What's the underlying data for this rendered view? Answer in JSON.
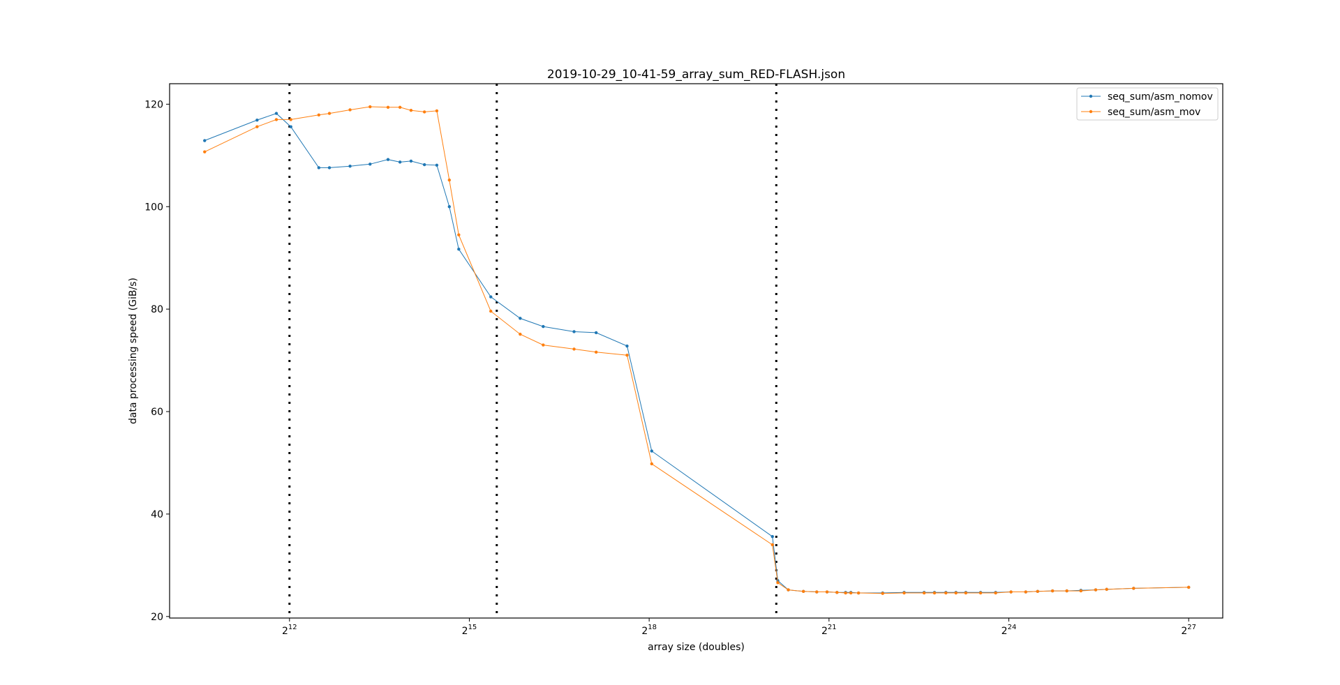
{
  "chart_data": {
    "type": "line",
    "title": "2019-10-29_10-41-59_array_sum_RED-FLASH.json",
    "xlabel": "array size (doubles)",
    "ylabel": "data processing speed (GiB/s)",
    "x_scale": "log2",
    "xlim": [
      1024,
      199000000
    ],
    "ylim": [
      19.7,
      124
    ],
    "yticks": [
      20,
      40,
      60,
      80,
      100,
      120
    ],
    "ytick_labels": [
      "20",
      "40",
      "60",
      "80",
      "100",
      "120"
    ],
    "xticks": [
      4096,
      32768,
      262144,
      2097152,
      16777216,
      134217728
    ],
    "xtick_bases": [
      "2",
      "2",
      "2",
      "2",
      "2",
      "2"
    ],
    "xtick_exponents": [
      "12",
      "15",
      "18",
      "21",
      "24",
      "27"
    ],
    "vlines": [
      4096,
      45000,
      1140000
    ],
    "vline_style": "dotted black",
    "grid": false,
    "legend_position": "top-right",
    "series": [
      {
        "name": "seq_sum/asm_nomov",
        "color": "#1f77b4",
        "marker": "dot",
        "x": [
          1536,
          2816,
          3520,
          4160,
          5750,
          6500,
          8250,
          10400,
          12800,
          14700,
          16700,
          19500,
          22500,
          26000,
          29000,
          42000,
          59000,
          77000,
          110000,
          142000,
          203000,
          270000,
          1090000,
          1160000,
          1310000,
          1560000,
          1820000,
          2050000,
          2300000,
          2540000,
          2700000,
          2950000,
          3900000,
          5000000,
          6300000,
          7100000,
          8100000,
          9100000,
          10200000,
          12100000,
          14400000,
          17200000,
          20400000,
          23400000,
          27800000,
          32800000,
          38600000,
          45800000,
          52000000,
          71000000,
          134217728
        ],
        "y": [
          112.9,
          116.9,
          118.2,
          115.6,
          107.6,
          107.6,
          107.9,
          108.3,
          109.2,
          108.7,
          108.9,
          108.2,
          108.1,
          100.0,
          91.7,
          82.4,
          78.2,
          76.6,
          75.6,
          75.4,
          72.8,
          52.3,
          35.6,
          27.0,
          25.2,
          24.9,
          24.8,
          24.8,
          24.7,
          24.7,
          24.7,
          24.6,
          24.6,
          24.7,
          24.7,
          24.7,
          24.7,
          24.7,
          24.7,
          24.7,
          24.7,
          24.8,
          24.8,
          24.9,
          25.0,
          25.0,
          25.1,
          25.2,
          25.3,
          25.5,
          25.7
        ]
      },
      {
        "name": "seq_sum/asm_mov",
        "color": "#ff7f0e",
        "marker": "dot",
        "x": [
          1536,
          2816,
          3520,
          4160,
          5750,
          6500,
          8250,
          10400,
          12800,
          14700,
          16700,
          19500,
          22500,
          26000,
          29000,
          42000,
          59000,
          77000,
          110000,
          142000,
          203000,
          270000,
          1090000,
          1160000,
          1310000,
          1560000,
          1820000,
          2050000,
          2300000,
          2540000,
          2700000,
          2950000,
          3900000,
          5000000,
          6300000,
          7100000,
          8100000,
          9100000,
          10200000,
          12100000,
          14400000,
          17200000,
          20400000,
          23400000,
          27800000,
          32800000,
          38600000,
          45800000,
          52000000,
          71000000,
          134217728
        ],
        "y": [
          110.7,
          115.6,
          117.0,
          117.0,
          117.9,
          118.2,
          118.9,
          119.5,
          119.4,
          119.4,
          118.8,
          118.5,
          118.7,
          105.2,
          94.5,
          79.6,
          75.1,
          73.0,
          72.2,
          71.6,
          71.0,
          49.8,
          34.0,
          26.6,
          25.2,
          24.9,
          24.8,
          24.8,
          24.7,
          24.6,
          24.6,
          24.6,
          24.5,
          24.6,
          24.6,
          24.6,
          24.6,
          24.6,
          24.6,
          24.6,
          24.6,
          24.8,
          24.8,
          24.9,
          25.0,
          25.0,
          25.0,
          25.2,
          25.3,
          25.5,
          25.7
        ]
      }
    ]
  }
}
